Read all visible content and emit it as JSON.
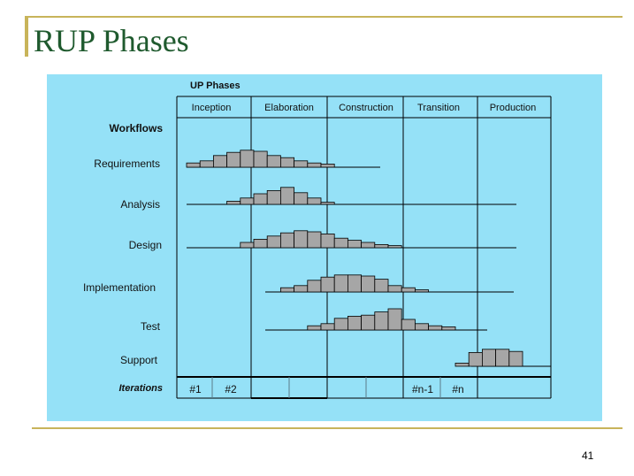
{
  "slide": {
    "title": "RUP Phases",
    "page_number": "41"
  },
  "diagram": {
    "title": "UP Phases",
    "phases": [
      "Inception",
      "Elaboration",
      "Construction",
      "Transition",
      "Production"
    ],
    "rows_heading": "Workflows",
    "workflows": [
      "Requirements",
      "Analysis",
      "Design",
      "Implementation",
      "Test",
      "Support"
    ],
    "iterations_label": "Iterations",
    "iterations": [
      "#1",
      "#2",
      "",
      "",
      "",
      "",
      "#n-1",
      "#n"
    ],
    "colors": {
      "panel": "#95e1f7",
      "bar": "#a6a6a6",
      "accent": "#c8b45a",
      "title": "#1f5a2e"
    }
  },
  "chart_data": {
    "type": "bar",
    "description_units": "relative effort per iteration (0-1)",
    "series": [
      {
        "name": "Requirements",
        "start": 0,
        "values": [
          0.2,
          0.3,
          0.55,
          0.7,
          0.8,
          0.75,
          0.55,
          0.45,
          0.3,
          0.2,
          0.15
        ]
      },
      {
        "name": "Analysis",
        "start": 3,
        "values": [
          0.15,
          0.3,
          0.5,
          0.65,
          0.8,
          0.55,
          0.3,
          0.1
        ]
      },
      {
        "name": "Design",
        "start": 4,
        "values": [
          0.25,
          0.4,
          0.55,
          0.7,
          0.8,
          0.75,
          0.65,
          0.45,
          0.35,
          0.25,
          0.15,
          0.1
        ]
      },
      {
        "name": "Implementation",
        "start": 7,
        "values": [
          0.2,
          0.3,
          0.55,
          0.7,
          0.8,
          0.8,
          0.75,
          0.6,
          0.3,
          0.2,
          0.1
        ]
      },
      {
        "name": "Test",
        "start": 9,
        "values": [
          0.2,
          0.3,
          0.55,
          0.65,
          0.7,
          0.85,
          1.0,
          0.5,
          0.3,
          0.2,
          0.15
        ]
      },
      {
        "name": "Support",
        "start": 20,
        "values": [
          0.15,
          0.65,
          0.8,
          0.8,
          0.7
        ]
      }
    ]
  }
}
